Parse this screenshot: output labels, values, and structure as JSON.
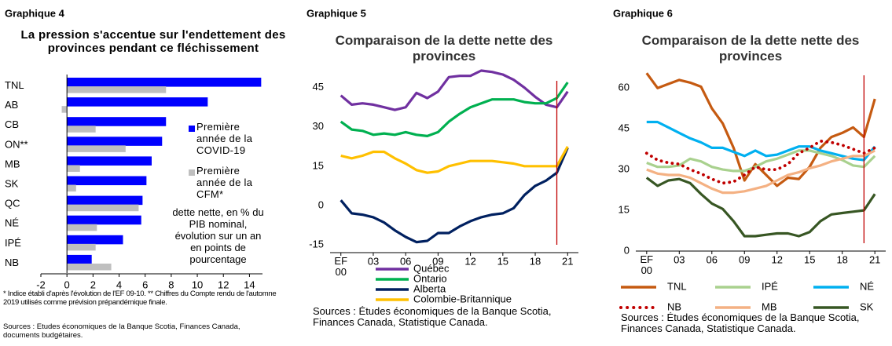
{
  "chart_data": [
    {
      "type": "barh",
      "label": "Graphique 4",
      "title": "La pression s'accentue sur l'endettement des provinces pendant ce fléchissement",
      "categories": [
        "TNL",
        "AB",
        "CB",
        "ON**",
        "MB",
        "SK",
        "QC",
        "NÉ",
        "IPÉ",
        "NB"
      ],
      "series": [
        {
          "name": "Première année de la COVID-19",
          "color": "#0000ff",
          "values": [
            14.9,
            10.8,
            7.6,
            7.3,
            6.5,
            6.1,
            5.8,
            5.7,
            4.3,
            1.9
          ]
        },
        {
          "name": "Première année de la CFM*",
          "color": "#bfbfbf",
          "values": [
            7.6,
            -0.4,
            2.2,
            4.5,
            1.0,
            0.7,
            5.5,
            2.3,
            2.2,
            3.4
          ]
        }
      ],
      "xlim": [
        -2,
        15
      ],
      "xticks": [
        -2,
        0,
        2,
        4,
        6,
        8,
        10,
        12,
        14
      ],
      "axis_note": "dette nette, en % du PIB nominal, évolution sur un an en points de pourcentage",
      "notes": "* Indice établi d'après l'évolution de l'EF 09-10. ** Chiffres du Compte rendu de l'automne 2019 utilisés comme prévision prépandémique finale.",
      "source": "Sources : Études économiques de la Banque Scotia, Finances Canada, documents budgétaires."
    },
    {
      "type": "line",
      "label": "Graphique 5",
      "title": "Comparaison de la dette nette des provinces",
      "x": [
        0,
        1,
        2,
        3,
        4,
        5,
        6,
        7,
        8,
        9,
        10,
        11,
        12,
        13,
        14,
        15,
        16,
        17,
        18,
        19,
        20,
        21
      ],
      "series": [
        {
          "name": "Québec",
          "color": "#7030a0",
          "values": [
            42,
            38.5,
            39,
            38.5,
            37.5,
            36.5,
            37.5,
            43,
            41,
            43.5,
            49,
            49.5,
            49.5,
            51.5,
            51,
            50,
            48,
            45,
            41.5,
            38.5,
            37.5,
            43.5
          ]
        },
        {
          "name": "Ontario",
          "color": "#00b050",
          "values": [
            32,
            29,
            28.5,
            27,
            27.5,
            27,
            28,
            27,
            26.5,
            28,
            32,
            35,
            37.5,
            39,
            40.5,
            40.5,
            40.5,
            39.5,
            39,
            39,
            41,
            47
          ]
        },
        {
          "name": "Alberta",
          "color": "#002060",
          "values": [
            2,
            -3,
            -3.5,
            -4.5,
            -6.5,
            -9.5,
            -12,
            -14,
            -13.5,
            -10.5,
            -10.5,
            -8,
            -6,
            -4.5,
            -3.5,
            -3,
            -1,
            4,
            7.5,
            9.5,
            12.5,
            22
          ]
        },
        {
          "name": "Colombie-Britannique",
          "color": "#ffc000",
          "values": [
            19,
            18,
            19,
            20.5,
            20.5,
            18,
            16,
            13.5,
            12.5,
            13,
            15,
            16,
            17,
            17,
            17,
            16.5,
            16,
            15,
            15,
            15,
            15,
            22.5
          ]
        }
      ],
      "xlim": [
        -1,
        22
      ],
      "xticks": [
        {
          "value": 0,
          "label": "EF 00"
        },
        {
          "value": 3,
          "label": "03"
        },
        {
          "value": 6,
          "label": "06"
        },
        {
          "value": 9,
          "label": "09"
        },
        {
          "value": 12,
          "label": "12"
        },
        {
          "value": 15,
          "label": "15"
        },
        {
          "value": 18,
          "label": "18"
        },
        {
          "value": 21,
          "label": "21"
        }
      ],
      "ylim": [
        -18,
        50
      ],
      "yticks": [
        -15,
        0,
        15,
        30,
        45
      ],
      "reference_line": {
        "x": 20,
        "color": "#c00000"
      },
      "source": "Sources : Études économiques de la Banque Scotia, Finances Canada, Statistique Canada."
    },
    {
      "type": "line",
      "label": "Graphique 6",
      "title": "Comparaison de la dette nette des provinces",
      "x": [
        0,
        1,
        2,
        3,
        4,
        5,
        6,
        7,
        8,
        9,
        10,
        11,
        12,
        13,
        14,
        15,
        16,
        17,
        18,
        19,
        20,
        21
      ],
      "series": [
        {
          "name": "TNL",
          "color": "#c55a11",
          "values": [
            65.5,
            60,
            61.5,
            63,
            62,
            60.5,
            52.5,
            47,
            38,
            26,
            32,
            28,
            24,
            27,
            26.5,
            31,
            38,
            42,
            43.5,
            45.5,
            42,
            56
          ]
        },
        {
          "name": "IPÉ",
          "color": "#a9d18e",
          "values": [
            32.5,
            31,
            31,
            31.5,
            34,
            33,
            31,
            30,
            29.5,
            29.5,
            31,
            33,
            34,
            35.5,
            37,
            37,
            36,
            35,
            33.5,
            31.5,
            31,
            35
          ]
        },
        {
          "name": "NÉ",
          "color": "#00b0f0",
          "values": [
            47.5,
            47.5,
            45.5,
            43.5,
            41.5,
            40,
            38,
            38,
            36.5,
            35,
            37,
            35,
            35.5,
            37,
            38.5,
            38.5,
            37,
            36,
            35,
            34,
            33.5,
            38.5
          ]
        },
        {
          "name": "NB",
          "color": "#c00000",
          "style": "dotted",
          "values": [
            36,
            33.5,
            32.5,
            32,
            30,
            28.5,
            26.5,
            25,
            25.5,
            28,
            31,
            30,
            30,
            32,
            36,
            38,
            40.5,
            40,
            39,
            37.5,
            36,
            38
          ]
        },
        {
          "name": "MB",
          "color": "#f4b183",
          "values": [
            30,
            28.5,
            28,
            28,
            27,
            25,
            23,
            21.5,
            21.5,
            22,
            23,
            24,
            26,
            28,
            29,
            30.5,
            31.5,
            33,
            34,
            35,
            35,
            37
          ]
        },
        {
          "name": "SK",
          "color": "#375623",
          "values": [
            27,
            24,
            26,
            26.5,
            25,
            21,
            17.5,
            15.5,
            11,
            5.5,
            5.5,
            6,
            6.5,
            6.5,
            5.5,
            7,
            11,
            13.5,
            14,
            14.5,
            15,
            21
          ]
        }
      ],
      "xlim": [
        -1,
        22
      ],
      "xticks": [
        {
          "value": 0,
          "label": "EF 00"
        },
        {
          "value": 3,
          "label": "03"
        },
        {
          "value": 6,
          "label": "06"
        },
        {
          "value": 9,
          "label": "09"
        },
        {
          "value": 12,
          "label": "12"
        },
        {
          "value": 15,
          "label": "15"
        },
        {
          "value": 18,
          "label": "18"
        },
        {
          "value": 21,
          "label": "21"
        }
      ],
      "ylim": [
        0,
        67
      ],
      "yticks": [
        0,
        15,
        30,
        45,
        60
      ],
      "reference_line": {
        "x": 20,
        "color": "#c00000"
      },
      "source": "Sources : Études économiques de la Banque Scotia, Finances Canada, Statistique Canada."
    }
  ]
}
